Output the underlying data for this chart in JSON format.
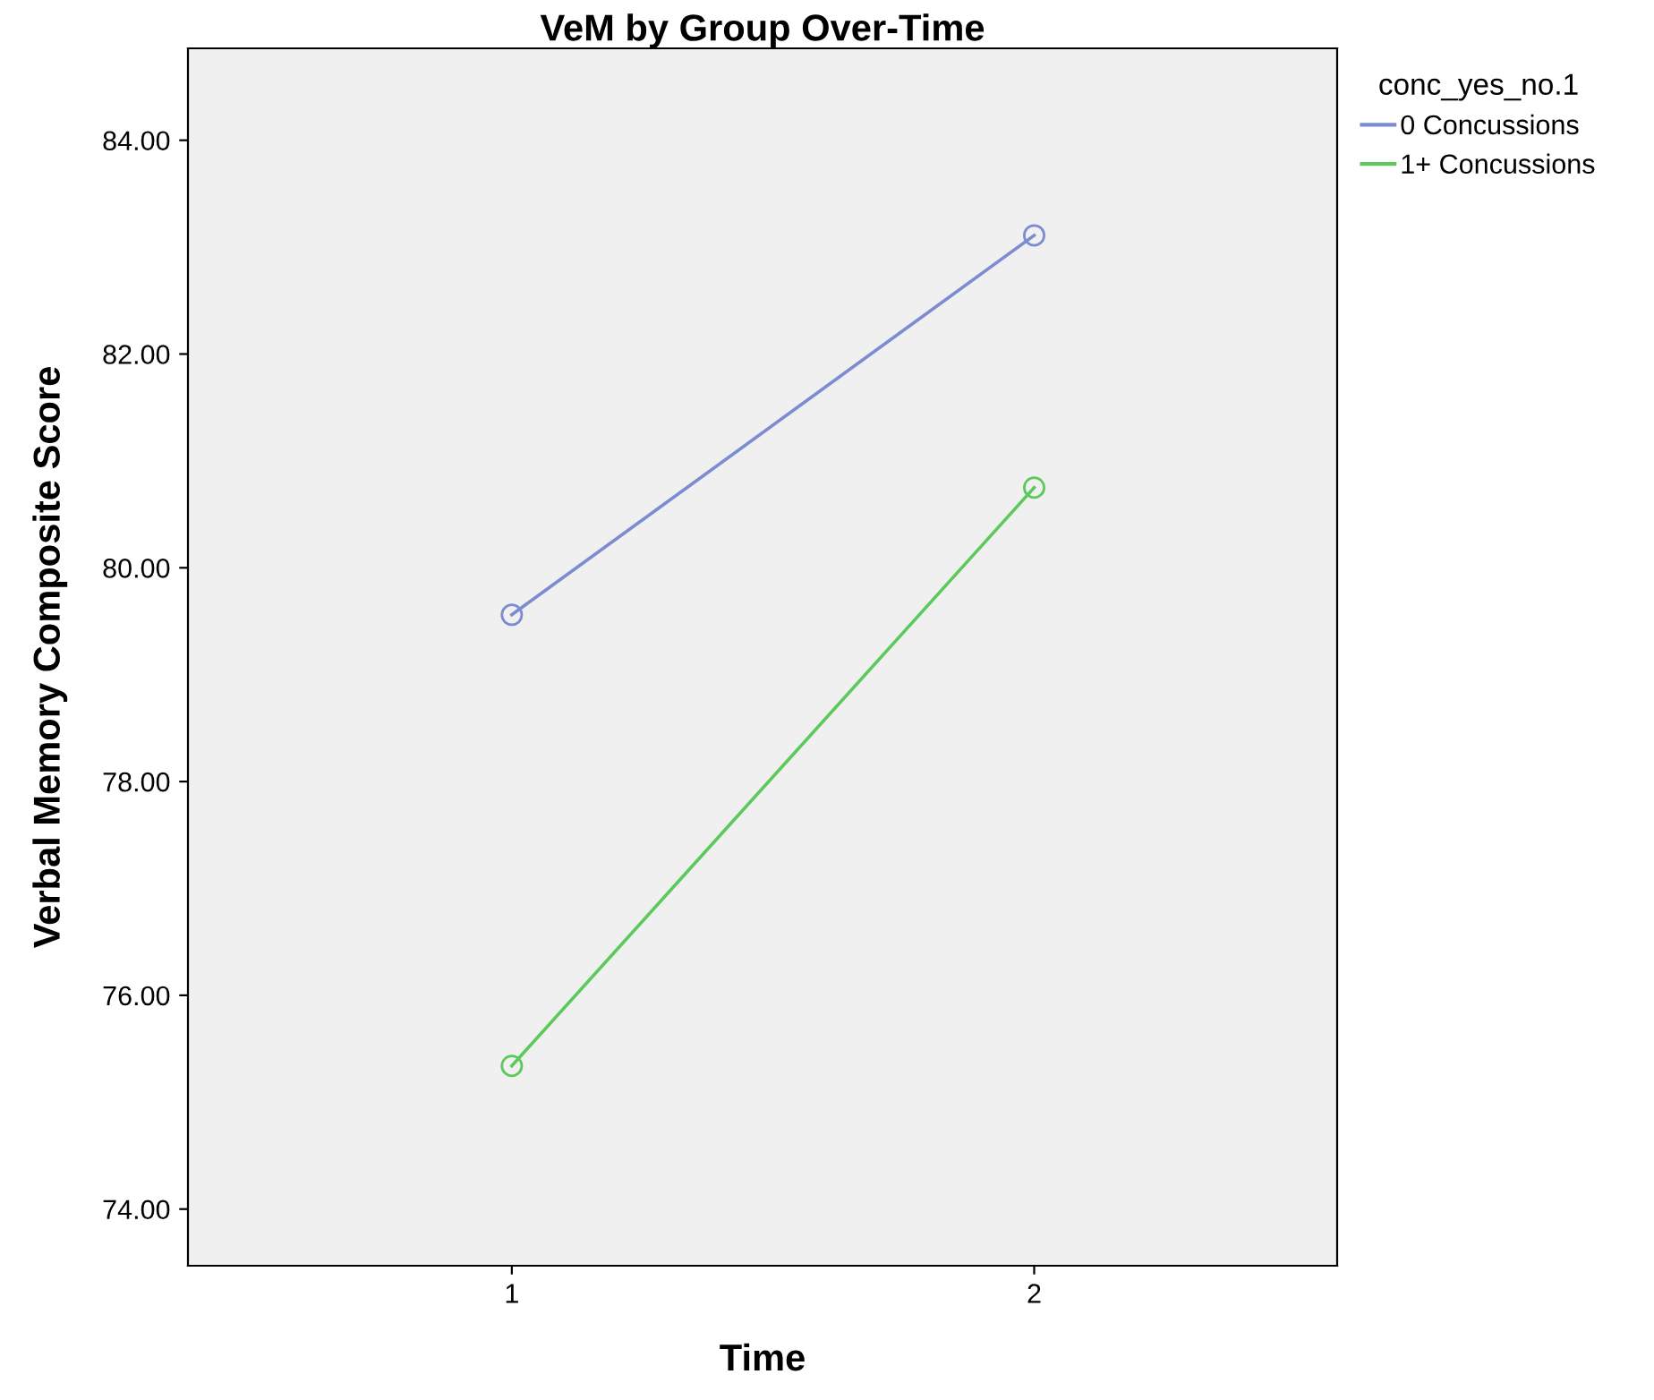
{
  "chart_data": {
    "type": "line",
    "title": "VeM by Group Over-Time",
    "xlabel": "Time",
    "ylabel": "Verbal Memory Composite Score",
    "legend_title": "conc_yes_no.1",
    "categories": [
      "1",
      "2"
    ],
    "series": [
      {
        "name": "0 Concussions",
        "color": "#7b8cd1",
        "values": [
          79.56,
          83.11
        ]
      },
      {
        "name": "1+ Concussions",
        "color": "#5cc95c",
        "values": [
          75.34,
          80.75
        ]
      }
    ],
    "ylim": [
      73.47,
      84.86
    ],
    "yticks": [
      {
        "value": 74,
        "label": "74.00"
      },
      {
        "value": 76,
        "label": "76.00"
      },
      {
        "value": 78,
        "label": "78.00"
      },
      {
        "value": 80,
        "label": "80.00"
      },
      {
        "value": 82,
        "label": "82.00"
      },
      {
        "value": 84,
        "label": "84.00"
      }
    ],
    "marker": "circle",
    "line_style": "solid",
    "grid": false,
    "legend": "top right"
  }
}
